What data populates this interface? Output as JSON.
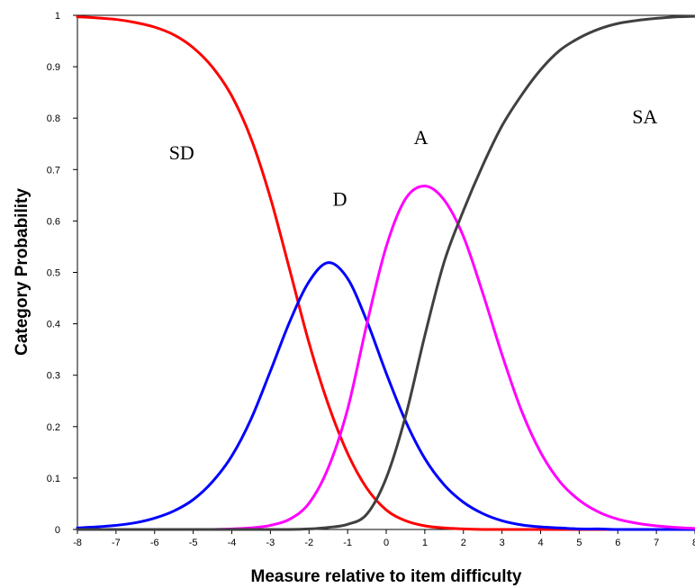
{
  "chart_data": {
    "type": "line",
    "title": "",
    "xlabel": "Measure relative to item difficulty",
    "ylabel": "Category Probability",
    "xlim": [
      -8,
      8
    ],
    "ylim": [
      0,
      1
    ],
    "x_ticks": [
      -8,
      -7,
      -6,
      -5,
      -4,
      -3,
      -2,
      -1,
      0,
      1,
      2,
      3,
      4,
      5,
      6,
      7,
      8
    ],
    "y_ticks": [
      0,
      0.1,
      0.2,
      0.3,
      0.4,
      0.5,
      0.6,
      0.7,
      0.8,
      0.9,
      1
    ],
    "x_tick_labels": [
      "-8",
      "-7",
      "-6",
      "-5",
      "-4",
      "-3",
      "-2",
      "-1",
      "0",
      "1",
      "2",
      "3",
      "4",
      "5",
      "6",
      "7",
      "8"
    ],
    "y_tick_labels": [
      "0",
      "0.1",
      "0.2",
      "0.3",
      "0.4",
      "0.5",
      "0.6",
      "0.7",
      "0.8",
      "0.9",
      "1"
    ],
    "grid": false,
    "legend": "none",
    "x": [
      -8,
      -7.5,
      -7,
      -6.5,
      -6,
      -5.5,
      -5,
      -4.5,
      -4,
      -3.5,
      -3,
      -2.5,
      -2,
      -1.5,
      -1,
      -0.5,
      0,
      0.5,
      1,
      1.5,
      2,
      2.5,
      3,
      3.5,
      4,
      4.5,
      5,
      5.5,
      6,
      6.5,
      7,
      7.5,
      8
    ],
    "series": [
      {
        "name": "SD",
        "color": "#ff0000",
        "label_at": [
          -5.3,
          0.72
        ],
        "values": [
          0.997,
          0.995,
          0.992,
          0.986,
          0.977,
          0.962,
          0.937,
          0.899,
          0.843,
          0.76,
          0.645,
          0.505,
          0.363,
          0.243,
          0.148,
          0.08,
          0.038,
          0.017,
          0.007,
          0.003,
          0.001,
          0,
          0,
          0,
          0,
          0,
          0,
          0,
          0,
          0,
          0,
          0,
          0
        ]
      },
      {
        "name": "D",
        "color": "#0000ff",
        "label_at": [
          -1.2,
          0.63
        ],
        "values": [
          0.003,
          0.005,
          0.008,
          0.013,
          0.022,
          0.036,
          0.058,
          0.093,
          0.143,
          0.215,
          0.308,
          0.404,
          0.482,
          0.519,
          0.488,
          0.405,
          0.304,
          0.211,
          0.138,
          0.087,
          0.053,
          0.031,
          0.017,
          0.009,
          0.005,
          0.003,
          0.001,
          0.001,
          0,
          0,
          0,
          0,
          0
        ]
      },
      {
        "name": "A",
        "color": "#ff00ff",
        "label_at": [
          0.9,
          0.75
        ],
        "values": [
          0,
          0,
          0,
          0,
          0,
          0,
          0,
          0,
          0.001,
          0.003,
          0.008,
          0.02,
          0.051,
          0.12,
          0.234,
          0.4,
          0.55,
          0.643,
          0.668,
          0.641,
          0.57,
          0.46,
          0.34,
          0.232,
          0.15,
          0.093,
          0.057,
          0.034,
          0.02,
          0.012,
          0.007,
          0.004,
          0.002
        ]
      },
      {
        "name": "SA",
        "color": "#404040",
        "label_at": [
          6.7,
          0.79
        ],
        "values": [
          0,
          0,
          0,
          0,
          0,
          0,
          0,
          0,
          0,
          0,
          0,
          0,
          0.001,
          0.004,
          0.01,
          0.03,
          0.1,
          0.22,
          0.377,
          0.52,
          0.62,
          0.708,
          0.785,
          0.844,
          0.894,
          0.932,
          0.956,
          0.973,
          0.984,
          0.99,
          0.994,
          0.997,
          0.998
        ]
      }
    ]
  }
}
